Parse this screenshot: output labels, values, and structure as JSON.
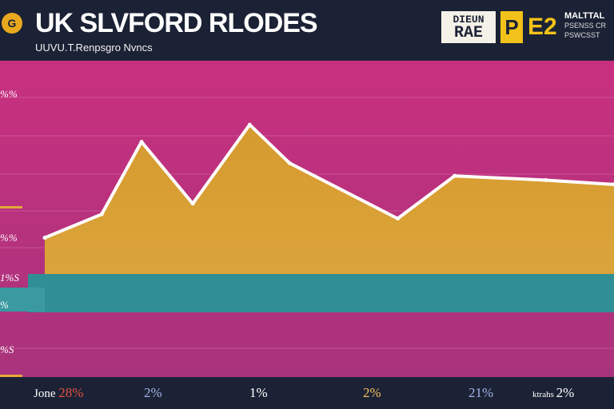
{
  "header": {
    "logo_glyph": "G",
    "title": "UK SLVFORD RLODES",
    "subtitle": "UUVU.T.Renpsgro Nvncs",
    "brand_box_top": "DIEUN",
    "brand_box_bottom": "RAE",
    "brand_yellow": "P",
    "brand_code": "E2",
    "brand_small_top": "MALTTAL",
    "brand_small_lines": [
      "PSENSS CR",
      "PSWCSST"
    ]
  },
  "colors": {
    "background": "#1d2336",
    "plot_magenta": "#c6357f",
    "area_gold": "#d79a33",
    "band_teal": "#2f8f94",
    "line_white": "#ffffff",
    "footer_red": "#e2513f",
    "footer_blue": "#9fb4e8",
    "footer_gold": "#f0c060"
  },
  "y_labels": [
    "%%",
    "%%",
    "1%S",
    "%",
    "%S"
  ],
  "footer": {
    "items": [
      {
        "prefix": "Jone",
        "value": "28%",
        "color": "#e2513f"
      },
      {
        "prefix": "",
        "value": "2%",
        "color": "#9fb4e8"
      },
      {
        "prefix": "",
        "value": "1%",
        "color": "#ffffff"
      },
      {
        "prefix": "",
        "value": "2%",
        "color": "#f0c060"
      },
      {
        "prefix": "",
        "value": "21%",
        "color": "#9fb4e8"
      },
      {
        "prefix": "ktrahs",
        "value": "2%",
        "color": "#ffffff"
      }
    ]
  },
  "chart_data": {
    "type": "area",
    "title": "UK SLVFORD RLODES",
    "subtitle": "UUVU.T.Renpsgro Nvncs",
    "ylim": [
      0,
      100
    ],
    "grid": true,
    "series": [
      {
        "values": [
          [
            0,
            17
          ],
          [
            10,
            28
          ],
          [
            17,
            62
          ],
          [
            26,
            33
          ],
          [
            36,
            70
          ],
          [
            43,
            52
          ],
          [
            62,
            26
          ],
          [
            72,
            46
          ],
          [
            88,
            44
          ],
          [
            100,
            42
          ]
        ]
      }
    ],
    "band": {
      "from": 0,
      "to": -18
    }
  }
}
